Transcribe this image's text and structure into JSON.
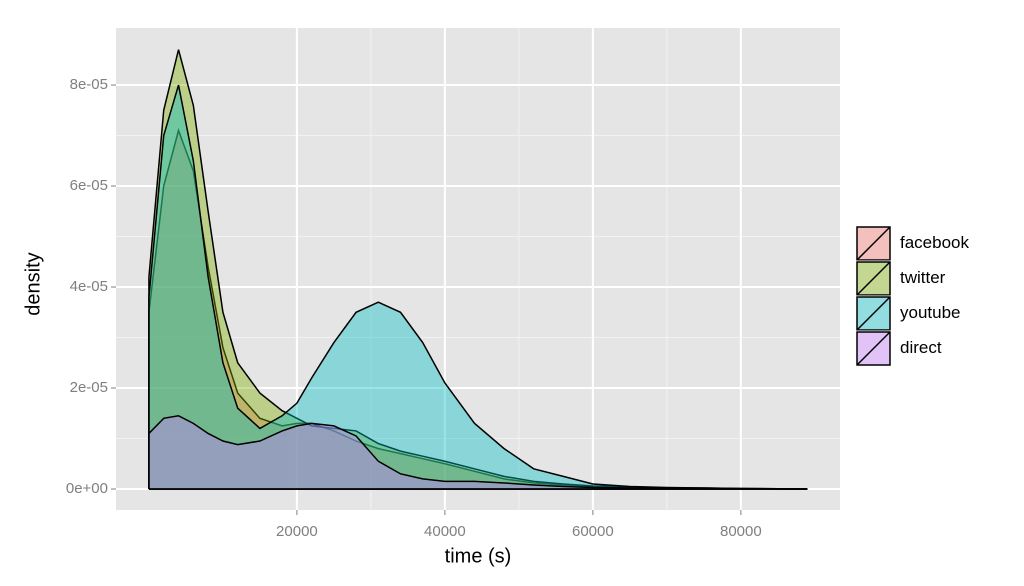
{
  "chart_data": {
    "type": "density",
    "x_label": "time (s)",
    "y_label": "density",
    "x": [
      0,
      2000,
      4000,
      6000,
      8000,
      10000,
      12000,
      15000,
      18000,
      20000,
      22000,
      25000,
      28000,
      31000,
      34000,
      37000,
      40000,
      44000,
      48000,
      52000,
      56000,
      60000,
      65000,
      70000,
      75000,
      80000,
      85000,
      89000
    ],
    "series": [
      {
        "name": "facebook",
        "color": "#F8766D",
        "values": [
          3.5e-05,
          6e-05,
          7.1e-05,
          6.3e-05,
          4.4e-05,
          2.8e-05,
          1.9e-05,
          1.4e-05,
          1.25e-05,
          1.3e-05,
          1.3e-05,
          1.15e-05,
          9.5e-06,
          8e-06,
          7e-06,
          6e-06,
          5e-06,
          3.5e-06,
          2e-06,
          1.2e-06,
          8e-07,
          5e-07,
          3e-07,
          2e-07,
          1e-07,
          5e-08,
          3e-08,
          0
        ]
      },
      {
        "name": "twitter",
        "color": "#7CAE00",
        "values": [
          4.2e-05,
          7.5e-05,
          8.7e-05,
          7.6e-05,
          5.5e-05,
          3.5e-05,
          2.5e-05,
          1.9e-05,
          1.55e-05,
          1.4e-05,
          1.25e-05,
          1.2e-05,
          1.15e-05,
          9e-06,
          7.5e-06,
          6.5e-06,
          5.5e-06,
          4e-06,
          2.5e-06,
          1.5e-06,
          1e-06,
          6e-07,
          4e-07,
          2e-07,
          2e-07,
          1e-07,
          5e-08,
          0
        ]
      },
      {
        "name": "youtube",
        "color": "#00BFC4",
        "values": [
          3.8e-05,
          7e-05,
          8e-05,
          6.5e-05,
          4.2e-05,
          2.5e-05,
          1.6e-05,
          1.2e-05,
          1.45e-05,
          1.7e-05,
          2.2e-05,
          2.9e-05,
          3.5e-05,
          3.7e-05,
          3.5e-05,
          2.9e-05,
          2.1e-05,
          1.3e-05,
          8e-06,
          4e-06,
          2.5e-06,
          1e-06,
          5e-07,
          3e-07,
          2e-07,
          1e-07,
          5e-08,
          0
        ]
      },
      {
        "name": "direct",
        "color": "#C77CFF",
        "values": [
          1.1e-05,
          1.4e-05,
          1.45e-05,
          1.3e-05,
          1.1e-05,
          9.5e-06,
          8.8e-06,
          9.5e-06,
          1.15e-05,
          1.25e-05,
          1.3e-05,
          1.25e-05,
          1.05e-05,
          5.5e-06,
          3e-06,
          2e-06,
          1.5e-06,
          1.5e-06,
          1.2e-06,
          8e-07,
          5e-07,
          3e-07,
          2e-07,
          1e-07,
          5e-08,
          3e-08,
          1e-08,
          0
        ]
      }
    ],
    "xlim": [
      -4450,
      93400
    ],
    "xticks": [
      20000,
      40000,
      60000,
      80000
    ],
    "ylim": [
      -4.16e-06,
      9.13e-05
    ],
    "yticks": [
      {
        "value": 0,
        "label": "0e+00"
      },
      {
        "value": 2e-05,
        "label": "2e-05"
      },
      {
        "value": 4e-05,
        "label": "4e-05"
      },
      {
        "value": 6e-05,
        "label": "6e-05"
      },
      {
        "value": 8e-05,
        "label": "8e-05"
      }
    ],
    "grid": true,
    "legend": "right"
  }
}
